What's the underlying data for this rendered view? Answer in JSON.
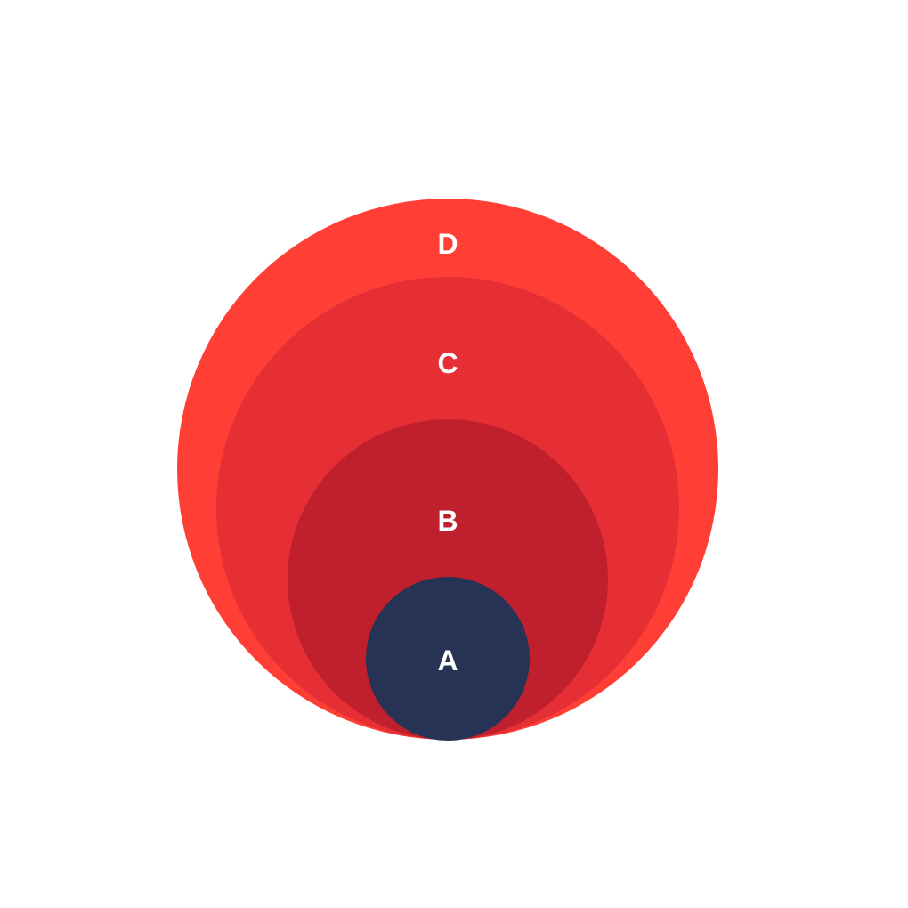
{
  "circles": [
    {
      "label": "D",
      "color": "#ff3f35"
    },
    {
      "label": "C",
      "color": "#e62e35"
    },
    {
      "label": "B",
      "color": "#c0202e"
    },
    {
      "label": "A",
      "color": "#263354"
    }
  ]
}
